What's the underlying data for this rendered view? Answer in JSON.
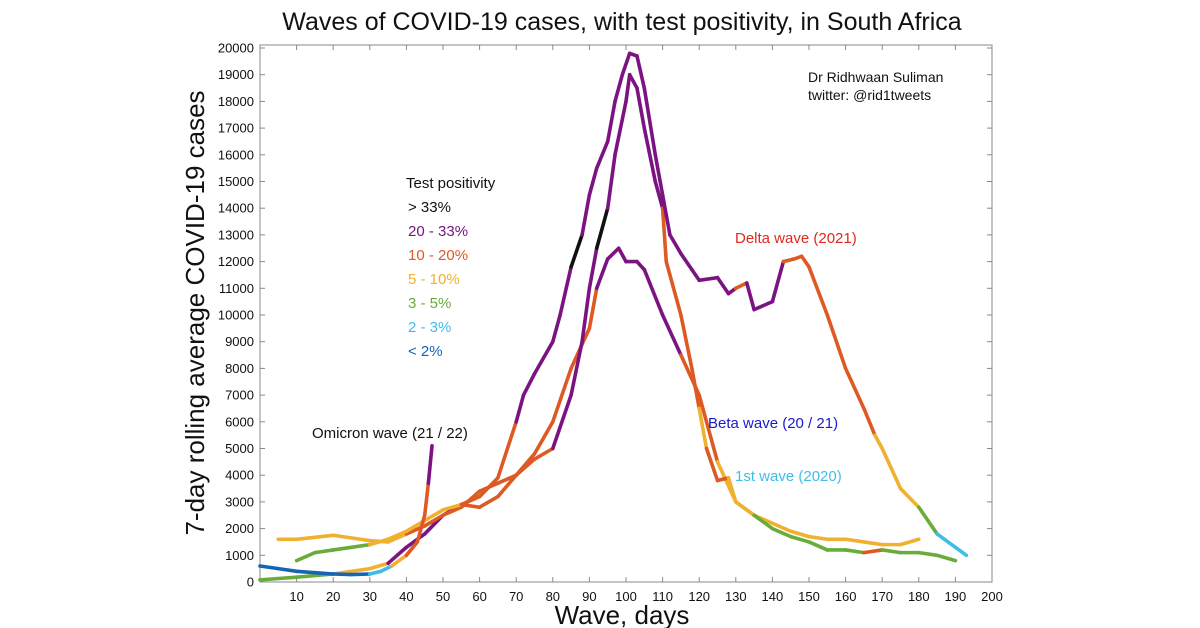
{
  "chart_data": {
    "type": "line",
    "title": "Waves of COVID-19 cases, with test positivity, in South Africa",
    "xlabel": "Wave, days",
    "ylabel": "7-day rolling average COVID-19 cases",
    "xlim": [
      0,
      200
    ],
    "ylim": [
      0,
      20000
    ],
    "xticks": [
      10,
      20,
      30,
      40,
      50,
      60,
      70,
      80,
      90,
      100,
      110,
      120,
      130,
      140,
      150,
      160,
      170,
      180,
      190,
      200
    ],
    "yticks": [
      0,
      1000,
      2000,
      3000,
      4000,
      5000,
      6000,
      7000,
      8000,
      9000,
      10000,
      11000,
      12000,
      13000,
      14000,
      15000,
      16000,
      17000,
      18000,
      19000,
      20000
    ],
    "grid": false,
    "credit": [
      "Dr Ridhwaan Suliman",
      "twitter: @rid1tweets"
    ],
    "legend": {
      "title": "Test positivity",
      "placement": "left",
      "entries": [
        {
          "label": "> 33%",
          "color": "#111111"
        },
        {
          "label": "20 - 33%",
          "color": "#7b1482"
        },
        {
          "label": "10 - 20%",
          "color": "#de5a24"
        },
        {
          "label": "5   - 10%",
          "color": "#f0b030"
        },
        {
          "label": "3   -  5%",
          "color": "#6aac3a"
        },
        {
          "label": "2   -  3%",
          "color": "#3fbde8"
        },
        {
          "label": "< 2%",
          "color": "#1565b5"
        }
      ]
    },
    "series": [
      {
        "name": "1st wave (2020)",
        "label_color": "#3fbde8",
        "points": [
          [
            0,
            80,
            4
          ],
          [
            10,
            180,
            4
          ],
          [
            20,
            300,
            4
          ],
          [
            30,
            500,
            3
          ],
          [
            35,
            700,
            3
          ],
          [
            40,
            1300,
            1
          ],
          [
            45,
            1800,
            1
          ],
          [
            50,
            2500,
            1
          ],
          [
            55,
            2900,
            1
          ],
          [
            60,
            2800,
            2
          ],
          [
            65,
            3200,
            2
          ],
          [
            70,
            4000,
            2
          ],
          [
            75,
            4800,
            2
          ],
          [
            80,
            6000,
            2
          ],
          [
            85,
            8000,
            2
          ],
          [
            90,
            9500,
            2
          ],
          [
            92,
            11000,
            2
          ],
          [
            95,
            12100,
            1
          ],
          [
            98,
            12500,
            1
          ],
          [
            100,
            12000,
            1
          ],
          [
            103,
            12000,
            1
          ],
          [
            105,
            11700,
            1
          ],
          [
            110,
            10000,
            1
          ],
          [
            115,
            8500,
            1
          ],
          [
            120,
            7000,
            2
          ],
          [
            125,
            4500,
            2
          ],
          [
            130,
            3000,
            3
          ],
          [
            135,
            2500,
            3
          ],
          [
            140,
            2200,
            3
          ],
          [
            145,
            1900,
            3
          ],
          [
            150,
            1700,
            3
          ],
          [
            155,
            1600,
            3
          ],
          [
            160,
            1600,
            3
          ],
          [
            165,
            1500,
            3
          ],
          [
            170,
            1400,
            3
          ],
          [
            175,
            1400,
            3
          ],
          [
            180,
            1600,
            3
          ]
        ]
      },
      {
        "name": "Beta wave (20 / 21)",
        "label_color": "#1a1acc",
        "points": [
          [
            5,
            1600,
            3
          ],
          [
            10,
            1600,
            3
          ],
          [
            20,
            1750,
            3
          ],
          [
            30,
            1550,
            3
          ],
          [
            35,
            1500,
            3
          ],
          [
            40,
            1800,
            3
          ],
          [
            45,
            2100,
            2
          ],
          [
            50,
            2500,
            2
          ],
          [
            55,
            2800,
            2
          ],
          [
            60,
            3400,
            2
          ],
          [
            65,
            3700,
            2
          ],
          [
            70,
            4000,
            2
          ],
          [
            75,
            4600,
            2
          ],
          [
            80,
            5000,
            2
          ],
          [
            85,
            7000,
            1
          ],
          [
            88,
            9000,
            1
          ],
          [
            90,
            11000,
            1
          ],
          [
            92,
            12500,
            1
          ],
          [
            95,
            14000,
            0
          ],
          [
            97,
            16000,
            1
          ],
          [
            100,
            18000,
            1
          ],
          [
            101,
            19000,
            1
          ],
          [
            103,
            18500,
            1
          ],
          [
            105,
            17000,
            1
          ],
          [
            108,
            15000,
            1
          ],
          [
            110,
            14000,
            1
          ],
          [
            111,
            12000,
            2
          ],
          [
            115,
            10000,
            2
          ],
          [
            118,
            8000,
            2
          ],
          [
            120,
            6500,
            2
          ],
          [
            122,
            5000,
            3
          ],
          [
            125,
            3800,
            2
          ],
          [
            128,
            3900,
            2
          ],
          [
            130,
            3000,
            3
          ],
          [
            135,
            2500,
            3
          ],
          [
            140,
            2000,
            4
          ],
          [
            145,
            1700,
            4
          ],
          [
            150,
            1500,
            4
          ],
          [
            155,
            1200,
            4
          ],
          [
            160,
            1200,
            4
          ],
          [
            165,
            1100,
            4
          ],
          [
            170,
            1200,
            2
          ],
          [
            175,
            1100,
            4
          ],
          [
            180,
            1100,
            4
          ],
          [
            185,
            1000,
            4
          ],
          [
            190,
            800,
            4
          ]
        ]
      },
      {
        "name": "Delta wave (2021)",
        "label_color": "#e0281e",
        "points": [
          [
            10,
            800,
            4
          ],
          [
            15,
            1100,
            4
          ],
          [
            20,
            1200,
            4
          ],
          [
            25,
            1300,
            4
          ],
          [
            30,
            1400,
            4
          ],
          [
            35,
            1600,
            3
          ],
          [
            40,
            1900,
            3
          ],
          [
            45,
            2300,
            3
          ],
          [
            50,
            2700,
            3
          ],
          [
            55,
            2900,
            3
          ],
          [
            60,
            3200,
            2
          ],
          [
            65,
            3900,
            2
          ],
          [
            70,
            6000,
            2
          ],
          [
            72,
            7000,
            1
          ],
          [
            75,
            7800,
            1
          ],
          [
            80,
            9000,
            1
          ],
          [
            82,
            10000,
            1
          ],
          [
            85,
            11800,
            1
          ],
          [
            88,
            13000,
            0
          ],
          [
            90,
            14500,
            1
          ],
          [
            92,
            15500,
            1
          ],
          [
            95,
            16500,
            1
          ],
          [
            97,
            18000,
            1
          ],
          [
            99,
            19000,
            1
          ],
          [
            101,
            19800,
            1
          ],
          [
            103,
            19700,
            1
          ],
          [
            105,
            18500,
            1
          ],
          [
            108,
            16000,
            1
          ],
          [
            110,
            14500,
            1
          ],
          [
            112,
            13000,
            1
          ],
          [
            115,
            12300,
            1
          ],
          [
            118,
            11700,
            1
          ],
          [
            120,
            11300,
            1
          ],
          [
            125,
            11400,
            1
          ],
          [
            128,
            10800,
            1
          ],
          [
            130,
            11000,
            1
          ],
          [
            133,
            11200,
            2
          ],
          [
            135,
            10200,
            1
          ],
          [
            140,
            10500,
            1
          ],
          [
            143,
            12000,
            1
          ],
          [
            146,
            12100,
            2
          ],
          [
            148,
            12200,
            2
          ],
          [
            150,
            11800,
            2
          ],
          [
            155,
            10000,
            2
          ],
          [
            160,
            8000,
            2
          ],
          [
            165,
            6500,
            2
          ],
          [
            168,
            5500,
            2
          ],
          [
            170,
            5000,
            3
          ],
          [
            175,
            3500,
            3
          ],
          [
            180,
            2800,
            3
          ],
          [
            185,
            1800,
            4
          ],
          [
            190,
            1300,
            5
          ],
          [
            193,
            1000,
            5
          ]
        ]
      },
      {
        "name": "Omicron wave (21 / 22)",
        "label_color": "#111111",
        "points": [
          [
            0,
            600,
            6
          ],
          [
            5,
            500,
            6
          ],
          [
            10,
            400,
            6
          ],
          [
            15,
            350,
            6
          ],
          [
            20,
            300,
            6
          ],
          [
            25,
            280,
            6
          ],
          [
            30,
            300,
            6
          ],
          [
            33,
            400,
            5
          ],
          [
            36,
            600,
            5
          ],
          [
            40,
            1000,
            3
          ],
          [
            43,
            1500,
            2
          ],
          [
            45,
            2500,
            2
          ],
          [
            46,
            3700,
            2
          ],
          [
            47,
            5100,
            1
          ]
        ]
      }
    ]
  }
}
